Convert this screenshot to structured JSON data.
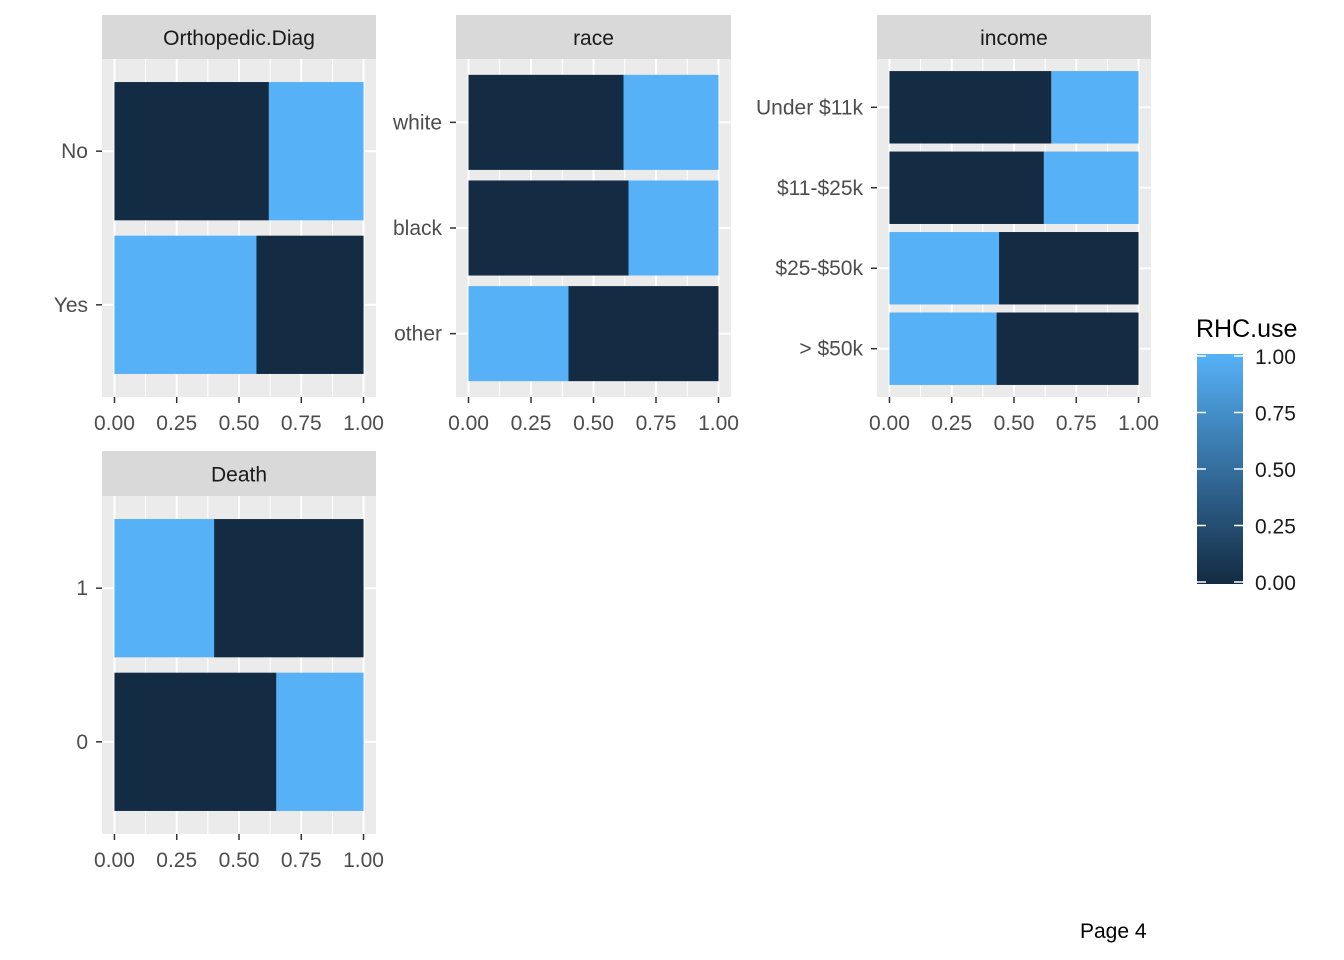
{
  "chart_data": {
    "type": "bar",
    "stacked": true,
    "orientation": "horizontal",
    "panels": [
      {
        "strip_label": "Orthopedic.Diag",
        "categories": [
          "No",
          "Yes"
        ],
        "segments": [
          [
            {
              "value": 0.62,
              "fill": 0.0
            },
            {
              "value": 0.38,
              "fill": 1.0
            }
          ],
          [
            {
              "value": 0.57,
              "fill": 1.0
            },
            {
              "value": 0.43,
              "fill": 0.0
            }
          ]
        ],
        "x_ticks": [
          "0.00",
          "0.25",
          "0.50",
          "0.75",
          "1.00"
        ],
        "xlim": [
          0,
          1
        ]
      },
      {
        "strip_label": "race",
        "categories": [
          "white",
          "black",
          "other"
        ],
        "segments": [
          [
            {
              "value": 0.62,
              "fill": 0.0
            },
            {
              "value": 0.38,
              "fill": 1.0
            }
          ],
          [
            {
              "value": 0.64,
              "fill": 0.0
            },
            {
              "value": 0.36,
              "fill": 1.0
            }
          ],
          [
            {
              "value": 0.4,
              "fill": 1.0
            },
            {
              "value": 0.6,
              "fill": 0.0
            }
          ]
        ],
        "x_ticks": [
          "0.00",
          "0.25",
          "0.50",
          "0.75",
          "1.00"
        ],
        "xlim": [
          0,
          1
        ]
      },
      {
        "strip_label": "income",
        "categories": [
          "Under $11k",
          "$11-$25k",
          "$25-$50k",
          "> $50k"
        ],
        "segments": [
          [
            {
              "value": 0.65,
              "fill": 0.0
            },
            {
              "value": 0.35,
              "fill": 1.0
            }
          ],
          [
            {
              "value": 0.62,
              "fill": 0.0
            },
            {
              "value": 0.38,
              "fill": 1.0
            }
          ],
          [
            {
              "value": 0.44,
              "fill": 1.0
            },
            {
              "value": 0.56,
              "fill": 0.0
            }
          ],
          [
            {
              "value": 0.43,
              "fill": 1.0
            },
            {
              "value": 0.57,
              "fill": 0.0
            }
          ]
        ],
        "x_ticks": [
          "0.00",
          "0.25",
          "0.50",
          "0.75",
          "1.00"
        ],
        "xlim": [
          0,
          1
        ]
      },
      {
        "strip_label": "Death",
        "categories": [
          "1",
          "0"
        ],
        "segments": [
          [
            {
              "value": 0.4,
              "fill": 1.0
            },
            {
              "value": 0.6,
              "fill": 0.0
            }
          ],
          [
            {
              "value": 0.65,
              "fill": 0.0
            },
            {
              "value": 0.35,
              "fill": 1.0
            }
          ]
        ],
        "x_ticks": [
          "0.00",
          "0.25",
          "0.50",
          "0.75",
          "1.00"
        ],
        "xlim": [
          0,
          1
        ]
      }
    ],
    "legend": {
      "title": "RHC.use",
      "ticks": [
        "1.00",
        "0.75",
        "0.50",
        "0.25",
        "0.00"
      ],
      "position": "right",
      "color_low": "#132B43",
      "color_high": "#56B1F7"
    }
  },
  "colors": {
    "panel_background": "#EBEBEB",
    "strip_background": "#D9D9D9",
    "grid_line": "#FFFFFF",
    "axis_text": "#4D4D4D"
  },
  "footer": {
    "page_label": "Page 4"
  }
}
